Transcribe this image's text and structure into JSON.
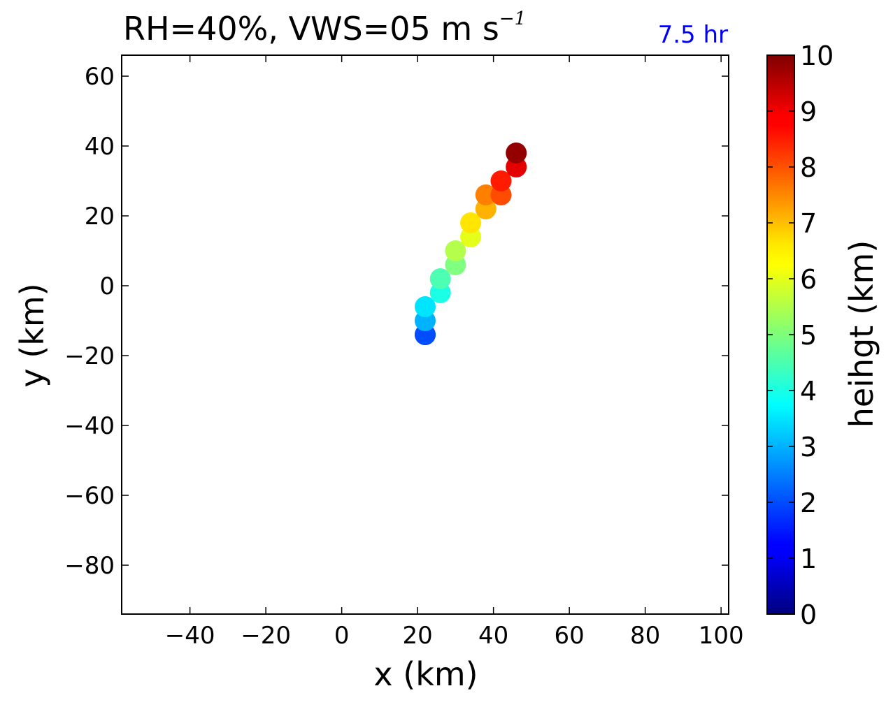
{
  "chart_data": {
    "type": "scatter",
    "title_main": "RH=40%, VWS=05 m s",
    "title_sup": "−1",
    "annotation": "7.5 hr",
    "annotation_color": "#0000ff",
    "xlabel": "x (km)",
    "ylabel": "y (km)",
    "xlim": [
      -58,
      102
    ],
    "ylim": [
      -94,
      66
    ],
    "xticks": [
      -40,
      -20,
      0,
      20,
      40,
      60,
      80,
      100
    ],
    "yticks": [
      -80,
      -60,
      -40,
      -20,
      0,
      20,
      40,
      60
    ],
    "colormap": "jet",
    "colorbar": {
      "label": "heihgt (km)",
      "range": [
        0,
        10
      ],
      "ticks": [
        0,
        1,
        2,
        3,
        4,
        5,
        6,
        7,
        8,
        9,
        10
      ]
    },
    "points": [
      {
        "x": 22,
        "y": -14,
        "height": 1.5
      },
      {
        "x": 22,
        "y": -14,
        "height": 2.0
      },
      {
        "x": 22,
        "y": -10,
        "height": 3.0
      },
      {
        "x": 22,
        "y": -6,
        "height": 3.5
      },
      {
        "x": 26,
        "y": -2,
        "height": 4.0
      },
      {
        "x": 26,
        "y": 2,
        "height": 4.5
      },
      {
        "x": 30,
        "y": 6,
        "height": 5.0
      },
      {
        "x": 30,
        "y": 10,
        "height": 5.5
      },
      {
        "x": 34,
        "y": 14,
        "height": 6.0
      },
      {
        "x": 34,
        "y": 18,
        "height": 6.5
      },
      {
        "x": 38,
        "y": 22,
        "height": 7.0
      },
      {
        "x": 38,
        "y": 26,
        "height": 7.5
      },
      {
        "x": 42,
        "y": 26,
        "height": 8.0
      },
      {
        "x": 42,
        "y": 30,
        "height": 8.5
      },
      {
        "x": 46,
        "y": 34,
        "height": 9.0
      },
      {
        "x": 46,
        "y": 38,
        "height": 9.8
      }
    ],
    "grid": false
  }
}
